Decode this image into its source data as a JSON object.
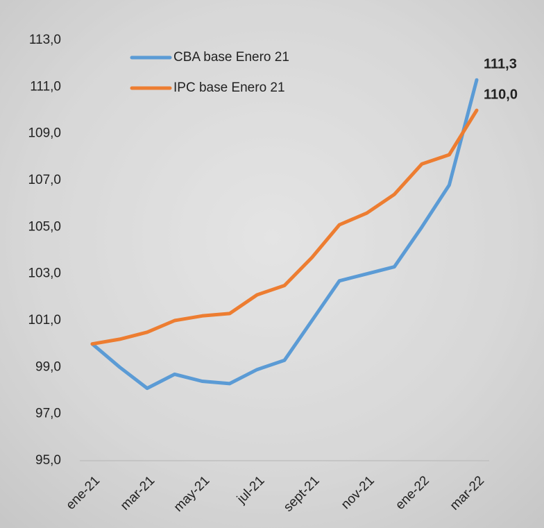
{
  "chart_data": {
    "type": "line",
    "categories": [
      "ene-21",
      null,
      "mar-21",
      null,
      "may-21",
      null,
      "jul-21",
      null,
      "sept-21",
      null,
      "nov-21",
      null,
      "ene-22",
      null,
      "mar-22"
    ],
    "series": [
      {
        "name": "CBA base Enero 21",
        "color": "#5b9bd5",
        "label_color": "#2e75b6",
        "values": [
          100.0,
          99.0,
          98.1,
          98.7,
          98.4,
          98.3,
          98.9,
          99.3,
          101.0,
          102.7,
          103.0,
          103.3,
          105.0,
          106.8,
          111.3
        ],
        "value_labels": [
          null,
          null,
          null,
          null,
          null,
          null,
          null,
          null,
          null,
          null,
          null,
          null,
          null,
          null,
          "111,3"
        ]
      },
      {
        "name": "IPC base Enero 21",
        "color": "#ed7d31",
        "label_color": "#c55a11",
        "values": [
          100.0,
          100.2,
          100.5,
          101.0,
          101.2,
          101.3,
          102.1,
          102.5,
          103.7,
          105.1,
          105.6,
          106.4,
          107.7,
          108.1,
          110.0
        ],
        "value_labels": [
          null,
          null,
          null,
          null,
          null,
          null,
          null,
          null,
          null,
          null,
          null,
          null,
          null,
          null,
          "110,0"
        ]
      }
    ],
    "ylim": [
      95,
      113
    ],
    "yticks": [
      {
        "value": 95,
        "label": "95,0"
      },
      {
        "value": 97,
        "label": "97,0"
      },
      {
        "value": 99,
        "label": "99,0"
      },
      {
        "value": 101,
        "label": "101,0"
      },
      {
        "value": 103,
        "label": "103,0"
      },
      {
        "value": 105,
        "label": "105,0"
      },
      {
        "value": 107,
        "label": "107,0"
      },
      {
        "value": 109,
        "label": "109,0"
      },
      {
        "value": 111,
        "label": "111,0"
      },
      {
        "value": 113,
        "label": "113,0"
      }
    ],
    "grid": false,
    "legend": "top"
  }
}
